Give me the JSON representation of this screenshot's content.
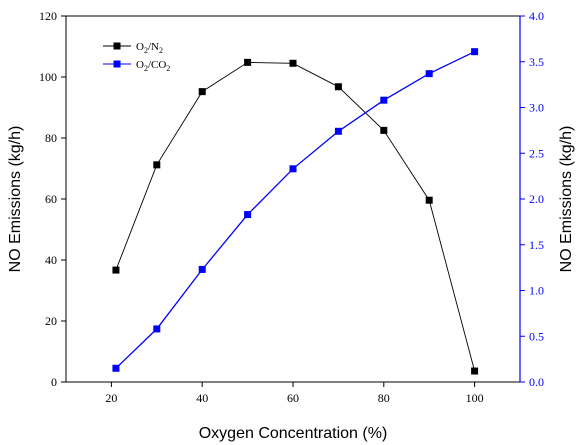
{
  "chart_data": {
    "type": "line",
    "title": "",
    "xlabel": "Oxygen Concentration (%)",
    "ylabel_left": "NO Emissions (kg/h)",
    "ylabel_right": "NO Emissions (kg/h)",
    "xlim": [
      10,
      110
    ],
    "ylim_left": [
      0,
      120
    ],
    "ylim_right": [
      0,
      4.0
    ],
    "x_ticks": [
      20,
      40,
      60,
      80,
      100
    ],
    "y_ticks_left": [
      0,
      20,
      40,
      60,
      80,
      100,
      120
    ],
    "y_ticks_right": [
      "0.0",
      "0.5",
      "1.0",
      "1.5",
      "2.0",
      "2.5",
      "3.0",
      "3.5",
      "4.0"
    ],
    "grid": false,
    "legend_position": "top-left",
    "series": [
      {
        "name_main": "O",
        "name_sub1": "2",
        "name_mid": "/N",
        "name_sub2": "2",
        "axis": "left",
        "color": "#000000",
        "x": [
          21,
          30,
          40,
          50,
          60,
          70,
          80,
          90,
          100
        ],
        "y": [
          36.7,
          71.2,
          95.2,
          104.8,
          104.5,
          96.8,
          82.5,
          59.6,
          3.6
        ]
      },
      {
        "name_main": "O",
        "name_sub1": "2",
        "name_mid": "/CO",
        "name_sub2": "2",
        "axis": "right",
        "color": "#0000ff",
        "x": [
          21,
          30,
          40,
          50,
          60,
          70,
          80,
          90,
          100
        ],
        "y": [
          0.15,
          0.58,
          1.23,
          1.83,
          2.33,
          2.74,
          3.08,
          3.37,
          3.61
        ]
      }
    ]
  }
}
